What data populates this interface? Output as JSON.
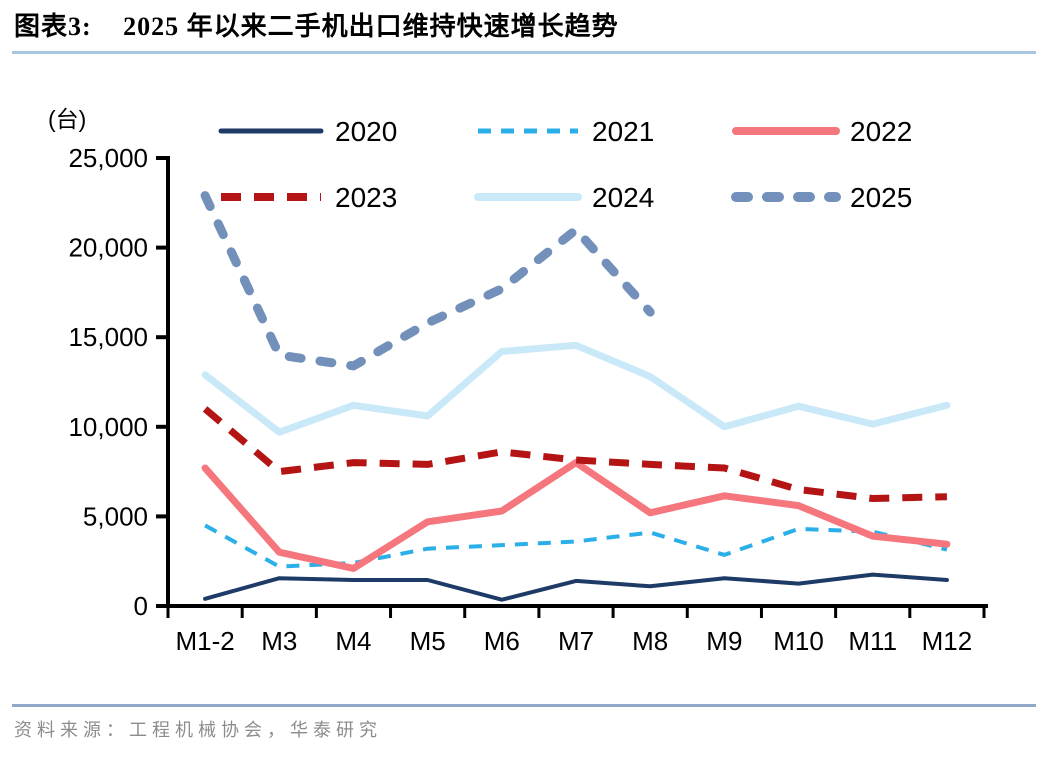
{
  "page": {
    "figure_label": "图表3:",
    "title": "2025 年以来二手机出口维持快速增长趋势",
    "source_note": "资料来源：工程机械协会，华泰研究"
  },
  "chart_data": {
    "type": "line",
    "title": "2025 年以来二手机出口维持快速增长趋势",
    "unit_label": "(台)",
    "categories": [
      "M1-2",
      "M3",
      "M4",
      "M5",
      "M6",
      "M7",
      "M8",
      "M9",
      "M10",
      "M11",
      "M12"
    ],
    "y_axis": {
      "range": [
        0,
        25000
      ],
      "tick_values": [
        25000,
        20000,
        15000,
        10000,
        5000,
        0
      ],
      "tick_labels": [
        "25,000",
        "20,000",
        "15,000",
        "10,000",
        "5,000",
        "0"
      ]
    },
    "grid": false,
    "legend_position": "top",
    "series": [
      {
        "name": "2020",
        "color": "#1E3A66",
        "style": "solid",
        "width": 4,
        "values": [
          400,
          1550,
          1450,
          1450,
          350,
          1400,
          1100,
          1550,
          1250,
          1750,
          1450
        ]
      },
      {
        "name": "2021",
        "color": "#2BAFE8",
        "style": "dashed",
        "width": 4,
        "values": [
          4500,
          2200,
          2400,
          3200,
          3400,
          3600,
          4100,
          2850,
          4300,
          4150,
          3150
        ]
      },
      {
        "name": "2022",
        "color": "#F5767C",
        "style": "solid",
        "width": 7,
        "values": [
          7700,
          3000,
          2100,
          4700,
          5300,
          8000,
          5200,
          6150,
          5600,
          3900,
          3450
        ]
      },
      {
        "name": "2023",
        "color": "#B41414",
        "style": "dashed",
        "width": 7,
        "values": [
          11000,
          7500,
          8000,
          7900,
          8600,
          8150,
          7900,
          7700,
          6500,
          6000,
          6100
        ]
      },
      {
        "name": "2024",
        "color": "#C9E9F9",
        "style": "solid",
        "width": 7,
        "values": [
          12900,
          9700,
          11200,
          10600,
          14200,
          14550,
          12800,
          10000,
          11150,
          10150,
          11200
        ]
      },
      {
        "name": "2025",
        "color": "#7290BA",
        "style": "dashed",
        "width": 9,
        "values": [
          22900,
          14000,
          13400,
          15800,
          17700,
          21000,
          16400,
          null,
          null,
          null,
          null
        ]
      }
    ]
  },
  "style": {
    "title_rule_color": "#A9C7E0",
    "footer_rule_color": "#8FA9C8",
    "muted_text_color": "#8C8C8C",
    "axis_color": "#000000"
  }
}
